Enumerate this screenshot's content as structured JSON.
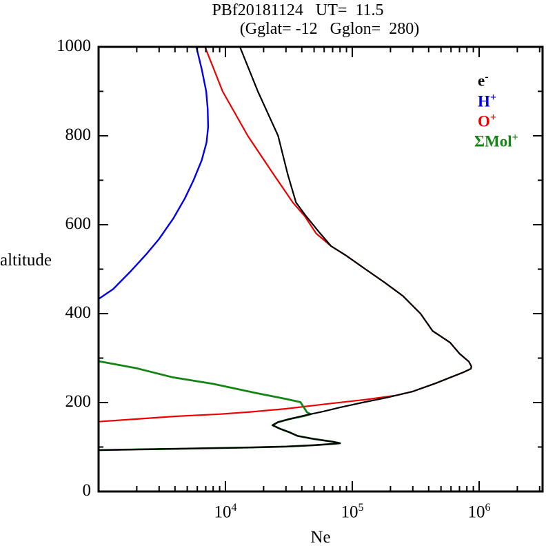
{
  "title": {
    "line1": "PBf20181124   UT=  11.5",
    "line2": "(Gglat= -12   Gglon=  280)"
  },
  "axes": {
    "x": {
      "label": "Ne",
      "scale": "log",
      "min": 1000,
      "max": 3160000,
      "ticks": [
        {
          "base": "10",
          "exp": "4",
          "value": 10000
        },
        {
          "base": "10",
          "exp": "5",
          "value": 100000
        },
        {
          "base": "10",
          "exp": "6",
          "value": 1000000
        }
      ]
    },
    "y": {
      "label": "altitude",
      "scale": "linear",
      "min": 0,
      "max": 1000,
      "major_ticks": [
        0,
        200,
        400,
        600,
        800,
        1000
      ],
      "minor_ticks": [
        100,
        300,
        500,
        700,
        900
      ],
      "tick_labels": [
        "1000",
        "800",
        "600",
        "400",
        "200",
        "0"
      ]
    }
  },
  "legend": [
    {
      "label": "e",
      "sup": "-",
      "color": "#000000"
    },
    {
      "label": "H",
      "sup": "+",
      "color": "#0000ee"
    },
    {
      "label": "O",
      "sup": "+",
      "color": "#ee0000"
    },
    {
      "label": "ΣMol",
      "sup": "+",
      "color": "#148414"
    }
  ],
  "chart_data": {
    "type": "line",
    "title": "PBf20181124   UT=  11.5",
    "subtitle": "(Gglat= -12   Gglon=  280)",
    "xlabel": "Ne",
    "ylabel": "altitude",
    "x_scale": "log",
    "xlim": [
      1000,
      3160000
    ],
    "ylim": [
      0,
      1000
    ],
    "grid": false,
    "legend_position": "upper right",
    "point_format": "[Ne_cm3, altitude_km]",
    "series": [
      {
        "name": "O+",
        "color": "#ee0000",
        "points": [
          [
            1000,
            157
          ],
          [
            2000,
            163
          ],
          [
            4000,
            169
          ],
          [
            9000,
            174
          ],
          [
            16000,
            179
          ],
          [
            30000,
            186
          ],
          [
            68000,
            198
          ],
          [
            130000,
            207
          ],
          [
            220000,
            216
          ],
          [
            300000,
            225
          ],
          [
            450000,
            243
          ],
          [
            600000,
            257
          ],
          [
            750000,
            268
          ],
          [
            860000,
            276
          ],
          [
            870000,
            281
          ],
          [
            830000,
            292
          ],
          [
            700000,
            310
          ],
          [
            590000,
            335
          ],
          [
            430000,
            361
          ],
          [
            345000,
            400
          ],
          [
            250000,
            440
          ],
          [
            180000,
            470
          ],
          [
            127000,
            500
          ],
          [
            90000,
            530
          ],
          [
            68000,
            552
          ],
          [
            52000,
            580
          ],
          [
            42000,
            620
          ],
          [
            34000,
            650
          ],
          [
            24000,
            713
          ],
          [
            15000,
            800
          ],
          [
            9500,
            900
          ],
          [
            6900,
            1000
          ]
        ]
      },
      {
        "name": "H+",
        "color": "#0000ee",
        "points": [
          [
            1000,
            433
          ],
          [
            1300,
            455
          ],
          [
            1800,
            496
          ],
          [
            2400,
            535
          ],
          [
            3000,
            568
          ],
          [
            3900,
            615
          ],
          [
            4800,
            660
          ],
          [
            5600,
            700
          ],
          [
            6500,
            745
          ],
          [
            7100,
            785
          ],
          [
            7300,
            820
          ],
          [
            7250,
            860
          ],
          [
            7050,
            900
          ],
          [
            6500,
            950
          ],
          [
            5900,
            1000
          ]
        ]
      },
      {
        "name": "SigmaMol+",
        "color": "#148414",
        "points": [
          [
            1000,
            293
          ],
          [
            2000,
            277
          ],
          [
            3800,
            257
          ],
          [
            8000,
            242
          ],
          [
            17000,
            222
          ],
          [
            30000,
            208
          ],
          [
            39000,
            201
          ],
          [
            44000,
            178
          ],
          [
            47000,
            174
          ],
          [
            42000,
            170
          ],
          [
            32000,
            163
          ],
          [
            26000,
            156
          ],
          [
            23500,
            149
          ],
          [
            27000,
            141
          ],
          [
            32000,
            133
          ],
          [
            37000,
            125
          ],
          [
            50000,
            118
          ],
          [
            70000,
            112
          ],
          [
            80000,
            108.5
          ],
          [
            70000,
            107
          ],
          [
            50000,
            104
          ],
          [
            30000,
            101
          ],
          [
            16000,
            99
          ],
          [
            8000,
            97.5
          ],
          [
            4000,
            96
          ],
          [
            2000,
            94.5
          ],
          [
            1000,
            93
          ]
        ]
      },
      {
        "name": "e-",
        "color": "#000000",
        "points": [
          [
            1000,
            93
          ],
          [
            2000,
            94.5
          ],
          [
            4000,
            96
          ],
          [
            8000,
            97.5
          ],
          [
            16000,
            99
          ],
          [
            30000,
            101
          ],
          [
            50000,
            104
          ],
          [
            70000,
            107
          ],
          [
            80000,
            108.5
          ],
          [
            70000,
            112
          ],
          [
            50000,
            118
          ],
          [
            37000,
            125
          ],
          [
            32000,
            133
          ],
          [
            27000,
            141
          ],
          [
            23500,
            149
          ],
          [
            26000,
            156
          ],
          [
            32000,
            163
          ],
          [
            42000,
            171
          ],
          [
            59000,
            180
          ],
          [
            80000,
            189
          ],
          [
            120000,
            200
          ],
          [
            186000,
            211
          ],
          [
            300000,
            225
          ],
          [
            450000,
            243
          ],
          [
            600000,
            257
          ],
          [
            750000,
            268
          ],
          [
            860000,
            276
          ],
          [
            870000,
            281
          ],
          [
            830000,
            292
          ],
          [
            700000,
            310
          ],
          [
            590000,
            335
          ],
          [
            430000,
            361
          ],
          [
            345000,
            400
          ],
          [
            250000,
            440
          ],
          [
            180000,
            470
          ],
          [
            127000,
            500
          ],
          [
            90000,
            530
          ],
          [
            68000,
            552
          ],
          [
            56000,
            580
          ],
          [
            43000,
            620
          ],
          [
            36000,
            650
          ],
          [
            31000,
            713
          ],
          [
            26000,
            800
          ],
          [
            18000,
            900
          ],
          [
            13000,
            1000
          ]
        ]
      }
    ]
  },
  "layout_note": ""
}
